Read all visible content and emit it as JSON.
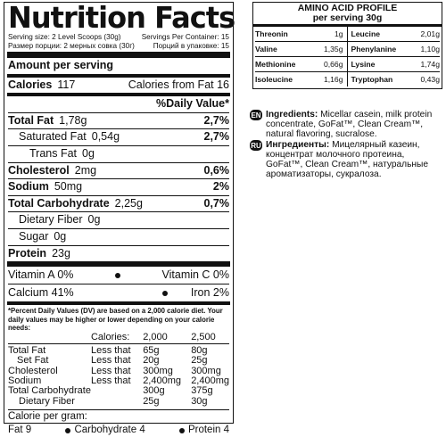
{
  "nutrition": {
    "title": "Nutrition Facts",
    "serving_size": "Serving size: 2 Level Scoops (30g)",
    "servings_per_container": "Servings Per Container: 15",
    "serving_size_ru": "Размер порции: 2 мерных совка (30г)",
    "servings_ru": "Порций в упаковке: 15",
    "amount_per_serving": "Amount per serving",
    "calories_label": "Calories",
    "calories_value": "117",
    "calories_from_fat": "Calories from Fat 16",
    "daily_value_header": "%Daily Value*",
    "rows": [
      {
        "label": "Total Fat",
        "value": "1,78g",
        "dv": "2,7%",
        "bold": true,
        "indent": 0
      },
      {
        "label": "Saturated Fat",
        "value": "0,54g",
        "dv": "2,7%",
        "bold": false,
        "indent": 1
      },
      {
        "label": "Trans Fat",
        "value": "0g",
        "dv": "",
        "bold": false,
        "indent": 2
      },
      {
        "label": "Cholesterol",
        "value": "2mg",
        "dv": "0,6%",
        "bold": true,
        "indent": 0
      },
      {
        "label": "Sodium",
        "value": "50mg",
        "dv": "2%",
        "bold": true,
        "indent": 0
      },
      {
        "label": "Total Carbohydrate",
        "value": "2,25g",
        "dv": "0,7%",
        "bold": true,
        "indent": 0
      },
      {
        "label": "Dietary Fiber",
        "value": "0g",
        "dv": "",
        "bold": false,
        "indent": 1
      },
      {
        "label": "Sugar",
        "value": "0g",
        "dv": "",
        "bold": false,
        "indent": 1
      }
    ],
    "protein_label": "Protein",
    "protein_value": "23g",
    "vitamin_a": "Vitamin A 0%",
    "vitamin_c": "Vitamin C 0%",
    "calcium": "Calcium 41%",
    "iron": "Iron 2%",
    "footnote": "*Percent Daily Values (DV) are based on a 2,000 calorie diet. Your daily values may be higher or lower depending on your calorie needs:",
    "dv_table": {
      "header": [
        "",
        "Calories:",
        "2,000",
        "2,500"
      ],
      "rows": [
        [
          "Total Fat",
          "Less that",
          "65g",
          "80g"
        ],
        [
          "Set Fat",
          "Less that",
          "20g",
          "25g"
        ],
        [
          "Cholesterol",
          "Less that",
          "300mg",
          "300mg"
        ],
        [
          "Sodium",
          "Less that",
          "2,400mg",
          "2,400mg"
        ],
        [
          "Total Carbohydrate",
          "",
          "300g",
          "375g"
        ],
        [
          "Dietary Fiber",
          "",
          "25g",
          "30g"
        ]
      ]
    },
    "calorie_per_gram": "Calorie per gram:",
    "fat_per_gram": "Fat 9",
    "carb_per_gram": "Carbohydrate 4",
    "protein_per_gram": "Protein 4"
  },
  "amino": {
    "title": "AMINO ACID PROFILE",
    "subtitle": "per serving 30g",
    "rows": [
      [
        {
          "name": "Threonin",
          "value": "1g"
        },
        {
          "name": "Leucine",
          "value": "2,01g"
        }
      ],
      [
        {
          "name": "Valine",
          "value": "1,35g"
        },
        {
          "name": "Phenylanine",
          "value": "1,10g"
        }
      ],
      [
        {
          "name": "Methionine",
          "value": "0,66g"
        },
        {
          "name": "Lysine",
          "value": "1,74g"
        }
      ],
      [
        {
          "name": "Isoleucine",
          "value": "1,16g"
        },
        {
          "name": "Tryptophan",
          "value": "0,43g"
        }
      ]
    ]
  },
  "ingredients": {
    "en_tag": "EN",
    "en_label": "Ingredients:",
    "en_text": " Micellar casein, milk protein concentrate, GoFat™, Clean Cream™, natural flavoring, sucralose.",
    "ru_tag": "RU",
    "ru_label": "Ингредиенты:",
    "ru_text": " Мицелярный казеин, концентрат молочного протеина, GoFat™, Clean Cream™, натуральные ароматизаторы, сукралоза."
  }
}
